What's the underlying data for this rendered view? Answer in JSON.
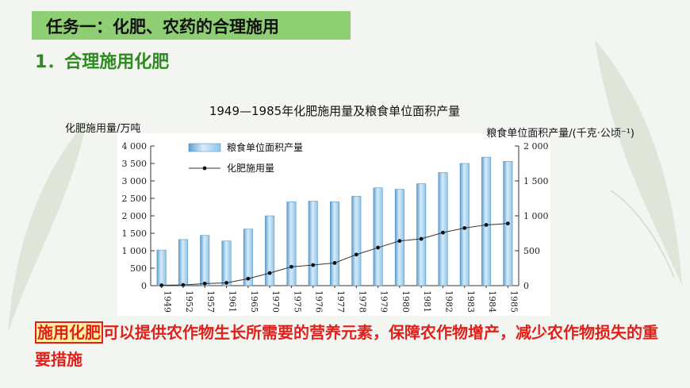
{
  "header": {
    "task_title": "任务一：化肥、农药的合理施用",
    "section_title": "1．合理施用化肥"
  },
  "chart_data": {
    "type": "bar",
    "title": "1949—1985年化肥施用量及粮食单位面积产量",
    "categories": [
      "1949",
      "1952",
      "1957",
      "1961",
      "1965",
      "1970",
      "1975",
      "1976",
      "1977",
      "1978",
      "1979",
      "1980",
      "1981",
      "1982",
      "1983",
      "1984",
      "1985"
    ],
    "series": [
      {
        "name": "粮食单位面积产量",
        "type": "bar",
        "axis": "right",
        "values": [
          510,
          660,
          720,
          640,
          810,
          1000,
          1200,
          1210,
          1200,
          1280,
          1400,
          1380,
          1460,
          1620,
          1750,
          1840,
          1780
        ]
      },
      {
        "name": "化肥施用量",
        "type": "line",
        "axis": "left",
        "values": [
          10,
          20,
          60,
          80,
          200,
          360,
          540,
          590,
          650,
          890,
          1090,
          1280,
          1340,
          1520,
          1650,
          1740,
          1780
        ]
      }
    ],
    "left_axis": {
      "label": "化肥施用量/万吨",
      "ylim": [
        0,
        4000
      ],
      "ticks": [
        "0",
        "500",
        "1 000",
        "1 500",
        "2 000",
        "2 500",
        "3 000",
        "3 500",
        "4 000"
      ]
    },
    "right_axis": {
      "label": "粮食单位面积产量/(千克·公顷⁻¹)",
      "ylim": [
        0,
        2000
      ],
      "ticks": [
        "0",
        "500",
        "1 000",
        "1 500",
        "2 000"
      ]
    },
    "legend_position": "top-left",
    "bar_color": "#8fc3e8",
    "line_color": "#333333"
  },
  "summary": {
    "highlight": "施用化肥",
    "rest": "可以提供农作物生长所需要的营养元素，保障农作物增产，减少农作物损失的重要措施"
  },
  "colors": {
    "task_bar": "#8fcf73",
    "section_green": "#2e8b1f",
    "summary_red": "#e0201a",
    "highlight_fill": "#fff3a0"
  }
}
